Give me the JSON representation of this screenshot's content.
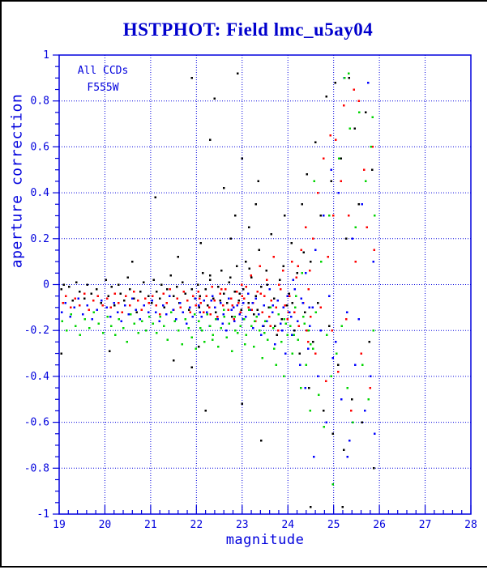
{
  "window": {
    "background": "#ffffff",
    "frame_color": "#000000"
  },
  "title": {
    "text": "HSTPHOT: Field lmc_u5ay04",
    "color": "#0000cd"
  },
  "legend": {
    "line1": "All CCDs",
    "line2": "F555W",
    "color": "#0000dd"
  },
  "axes": {
    "color": "#0000dd",
    "x": {
      "label": "magnitude",
      "min": 19,
      "max": 28,
      "major_ticks": [
        19,
        20,
        21,
        22,
        23,
        24,
        25,
        26,
        27,
        28
      ],
      "tick_labels": [
        "19",
        "20",
        "21",
        "22",
        "23",
        "24",
        "25",
        "26",
        "27",
        "28"
      ],
      "minor_step": 0.2,
      "grid_at": [
        20,
        21,
        22,
        23,
        24,
        25,
        26,
        27
      ]
    },
    "y": {
      "label": "aperture correction",
      "min": -1,
      "max": 1,
      "major_ticks": [
        1,
        0.8,
        0.6,
        0.4,
        0.2,
        0,
        -0.2,
        -0.4,
        -0.6,
        -0.8,
        -1
      ],
      "tick_labels": [
        "1",
        "0.8",
        "0.6",
        "0.4",
        "0.2",
        "0",
        "-0.2",
        "-0.4",
        "-0.6",
        "-0.8",
        "-1"
      ],
      "minor_step": 0.05,
      "grid_at": [
        0.8,
        0.6,
        0.4,
        0.2,
        0,
        -0.2,
        -0.4,
        -0.6,
        -0.8
      ]
    }
  },
  "chart_data": {
    "type": "scatter",
    "title": "HSTPHOT: Field lmc_u5ay04",
    "annotations": [
      "All CCDs",
      "F555W"
    ],
    "xlabel": "magnitude",
    "ylabel": "aperture correction",
    "xlim": [
      19,
      28
    ],
    "ylim": [
      -1,
      1
    ],
    "grid": "blue dotted lines at x = 20..27 and y = -0.8..0.8 step 0.2",
    "legend_position": "top-left inside plot",
    "marker": "small filled square",
    "point_format": "flat array [mag, apcor, mag, apcor, ...]",
    "description": "Aperture correction vs magnitude; tight band near -0.05 to -0.2 for mag 19-24, fanning out to +/-0.9 for mag 24.5-26; no points beyond mag 26.",
    "series": [
      {
        "name": "ccd-black",
        "color": "#000000",
        "points": [
          19.05,
          -0.02,
          19.1,
          0,
          19.15,
          -0.05,
          19.22,
          -0.01,
          19.3,
          -0.07,
          19.38,
          0.01,
          19.45,
          -0.03,
          19.55,
          -0.06,
          19.62,
          0,
          19.7,
          -0.04,
          19.82,
          -0.02,
          19.92,
          -0.08,
          20.02,
          0.02,
          20.08,
          -0.05,
          20.15,
          -0.01,
          20.21,
          -0.09,
          20.3,
          0,
          20.34,
          -0.04,
          20.42,
          -0.07,
          20.5,
          0.03,
          20.55,
          -0.02,
          20.63,
          -0.06,
          20.7,
          -0.12,
          20.78,
          -0.03,
          20.85,
          0.01,
          20.95,
          -0.05,
          21.02,
          -0.08,
          21.07,
          0.02,
          21.13,
          -0.03,
          21.2,
          -0.06,
          21.24,
          0,
          21.3,
          -0.1,
          21.36,
          -0.02,
          21.44,
          0.04,
          21.5,
          -0.05,
          21.57,
          -0.01,
          21.63,
          -0.08,
          21.7,
          0.01,
          21.76,
          -0.04,
          21.84,
          -0.11,
          21.9,
          -0.02,
          21.97,
          -0.06,
          22.03,
          0,
          22.08,
          -0.05,
          22.14,
          0.05,
          22.2,
          -0.02,
          22.25,
          -0.09,
          22.3,
          0.02,
          22.37,
          -0.06,
          22.42,
          -0.12,
          22.48,
          -0.01,
          22.55,
          0.06,
          22.6,
          -0.04,
          22.67,
          -0.08,
          22.72,
          0.01,
          22.78,
          -0.14,
          22.84,
          -0.03,
          22.88,
          0.08,
          22.93,
          -0.07,
          22.98,
          -0.11,
          23.03,
          -0.02,
          23.08,
          0.1,
          23.14,
          -0.08,
          23.2,
          0.03,
          23.26,
          -0.13,
          23.3,
          -0.05,
          23.37,
          0.15,
          23.42,
          -0.01,
          23.47,
          -0.18,
          23.53,
          0.06,
          23.58,
          -0.1,
          23.64,
          0.22,
          23.7,
          -0.06,
          23.76,
          -0.22,
          23.82,
          0.02,
          23.87,
          -0.15,
          23.93,
          0.3,
          23.98,
          -0.09,
          24.03,
          -0.04,
          24.08,
          0.18,
          24.14,
          -0.2,
          24.2,
          0.05,
          24.26,
          -0.3,
          24.31,
          0.35,
          24.37,
          -0.12,
          24.42,
          0.48,
          24.46,
          -0.45,
          24.5,
          0.1,
          24.55,
          -0.25,
          24.6,
          0.62,
          24.66,
          -0.08,
          24.72,
          0.3,
          24.78,
          -0.55,
          24.84,
          0.82,
          24.9,
          -0.18,
          24.95,
          0.45,
          24.98,
          -0.65,
          25.04,
          0.88,
          25.1,
          -0.35,
          25.16,
          0.55,
          25.22,
          -0.72,
          25.28,
          0.2,
          25.34,
          0.9,
          25.4,
          -0.5,
          25.46,
          0.68,
          25.55,
          0.35,
          25.62,
          -0.6,
          25.7,
          0.75,
          25.78,
          -0.25,
          25.84,
          0.5,
          25.88,
          -0.8,
          21.1,
          0.38,
          21.9,
          0.9,
          22.4,
          0.81,
          22.9,
          0.92,
          22.3,
          0.63,
          22.6,
          0.42,
          23.0,
          0.55,
          22.85,
          0.3,
          23.3,
          0.35,
          23.15,
          0.25,
          22.1,
          0.18,
          21.6,
          0.12,
          20.6,
          0.1,
          22.75,
          0.2,
          23.35,
          0.45,
          19.05,
          -0.3,
          20.1,
          -0.29,
          21.5,
          -0.33,
          22.05,
          -0.27,
          22.2,
          -0.55,
          23.0,
          -0.52,
          23.42,
          -0.68,
          21.9,
          -0.36,
          24.5,
          -0.97,
          25.2,
          -0.97,
          22.06,
          -0.1,
          22.3,
          0.04,
          22.52,
          -0.07,
          22.74,
          0.03,
          22.95,
          -0.04,
          23.16,
          0.07,
          23.34,
          -0.11,
          23.55,
          0,
          23.72,
          -0.18,
          23.9,
          0.08,
          24.1,
          -0.08,
          24.35,
          0.14
        ]
      },
      {
        "name": "ccd-red",
        "color": "#ff0000",
        "points": [
          19.08,
          -0.08,
          19.15,
          -0.05,
          19.25,
          -0.1,
          19.35,
          -0.06,
          19.45,
          -0.09,
          19.55,
          -0.04,
          19.65,
          -0.11,
          19.75,
          -0.07,
          19.85,
          -0.05,
          19.95,
          -0.09,
          20.05,
          -0.06,
          20.13,
          -0.1,
          20.22,
          -0.04,
          20.3,
          -0.08,
          20.38,
          -0.12,
          20.46,
          -0.05,
          20.55,
          -0.09,
          20.63,
          -0.03,
          20.72,
          -0.07,
          20.8,
          -0.11,
          20.88,
          -0.06,
          20.96,
          -0.08,
          21.04,
          -0.05,
          21.12,
          -0.09,
          21.2,
          -0.13,
          21.28,
          -0.04,
          21.35,
          -0.08,
          21.42,
          -0.02,
          21.5,
          -0.11,
          21.58,
          -0.06,
          21.65,
          -0.1,
          21.72,
          -0.03,
          21.8,
          -0.07,
          21.87,
          -0.12,
          21.93,
          -0.05,
          21.99,
          -0.09,
          22.04,
          -0.03,
          22.1,
          -0.08,
          22.16,
          -0.12,
          22.22,
          -0.05,
          22.28,
          -0.1,
          22.34,
          -0.01,
          22.4,
          -0.07,
          22.46,
          -0.14,
          22.52,
          -0.04,
          22.58,
          -0.09,
          22.64,
          -0.02,
          22.7,
          -0.11,
          22.76,
          -0.06,
          22.82,
          -0.15,
          22.88,
          -0.03,
          22.92,
          -0.08,
          22.96,
          -0.12,
          22.99,
          0,
          23.04,
          -0.06,
          23.09,
          -0.01,
          23.14,
          -0.1,
          23.19,
          0.04,
          23.24,
          -0.08,
          23.29,
          -0.16,
          23.34,
          -0.03,
          23.39,
          0.08,
          23.44,
          -0.12,
          23.49,
          -0.05,
          23.54,
          0.02,
          23.59,
          -0.14,
          23.64,
          -0.07,
          23.69,
          0.12,
          23.74,
          -0.1,
          23.79,
          -0.2,
          23.84,
          -0.02,
          23.89,
          0.06,
          23.94,
          -0.09,
          23.99,
          -0.15,
          24.04,
          -0.05,
          24.09,
          0.1,
          24.14,
          -0.12,
          24.19,
          0.03,
          24.24,
          -0.18,
          24.29,
          0.15,
          24.34,
          -0.08,
          24.39,
          0.25,
          24.44,
          -0.25,
          24.48,
          0.06,
          24.5,
          -0.14,
          24.45,
          -0.02,
          24.55,
          0.2,
          24.6,
          -0.3,
          24.66,
          0.4,
          24.72,
          -0.1,
          24.78,
          0.55,
          24.83,
          -0.42,
          24.88,
          0.12,
          24.93,
          0.65,
          24.97,
          -0.2,
          24.99,
          0.3,
          25.05,
          0.63,
          25.1,
          -0.38,
          25.16,
          0.45,
          25.22,
          0.78,
          25.28,
          -0.15,
          25.33,
          0.3,
          25.38,
          -0.55,
          25.44,
          0.85,
          25.48,
          0.1,
          25.55,
          0.8,
          25.6,
          -0.3,
          25.67,
          0.5,
          25.73,
          0.25,
          25.8,
          -0.45,
          25.85,
          0.6,
          25.89,
          0.15,
          22.07,
          -0.06,
          22.31,
          -0.13,
          22.55,
          -0.02,
          22.79,
          -0.09,
          23.0,
          -0.05,
          23.21,
          -0.11,
          23.41,
          -0.04,
          23.62,
          -0.18,
          23.81,
          0,
          24.01,
          -0.12,
          24.22,
          0.08,
          24.41,
          -0.2
        ]
      },
      {
        "name": "ccd-blue",
        "color": "#0000ff",
        "points": [
          19.06,
          -0.12,
          19.14,
          -0.08,
          19.24,
          -0.14,
          19.33,
          -0.1,
          19.42,
          -0.06,
          19.52,
          -0.13,
          19.62,
          -0.09,
          19.72,
          -0.15,
          19.83,
          -0.11,
          19.93,
          -0.07,
          20.04,
          -0.1,
          20.12,
          -0.14,
          20.2,
          -0.08,
          20.28,
          -0.12,
          20.36,
          -0.16,
          20.44,
          -0.09,
          20.52,
          -0.13,
          20.6,
          -0.06,
          20.68,
          -0.11,
          20.77,
          -0.15,
          20.86,
          -0.09,
          20.95,
          -0.12,
          21.03,
          -0.07,
          21.11,
          -0.12,
          21.19,
          -0.16,
          21.27,
          -0.09,
          21.34,
          -0.13,
          21.41,
          -0.05,
          21.49,
          -0.11,
          21.56,
          -0.15,
          21.64,
          -0.08,
          21.71,
          -0.12,
          21.79,
          -0.17,
          21.86,
          -0.1,
          21.92,
          -0.14,
          21.98,
          -0.06,
          22.05,
          -0.09,
          22.11,
          -0.14,
          22.17,
          -0.07,
          22.23,
          -0.12,
          22.29,
          -0.18,
          22.35,
          -0.05,
          22.41,
          -0.1,
          22.47,
          -0.15,
          22.53,
          -0.08,
          22.59,
          -0.13,
          22.65,
          -0.2,
          22.71,
          -0.06,
          22.77,
          -0.11,
          22.83,
          -0.16,
          22.89,
          -0.09,
          22.95,
          -0.13,
          23.03,
          -0.08,
          23.08,
          -0.14,
          23.13,
          -0.04,
          23.18,
          -0.11,
          23.24,
          -0.19,
          23.3,
          -0.06,
          23.36,
          -0.13,
          23.42,
          -0.22,
          23.48,
          -0.09,
          23.54,
          -0.16,
          23.6,
          -0.02,
          23.66,
          -0.12,
          23.72,
          -0.26,
          23.78,
          -0.07,
          23.84,
          -0.17,
          23.9,
          -0.1,
          23.95,
          -0.3,
          23.99,
          -0.05,
          24.04,
          -0.12,
          24.09,
          -0.22,
          24.15,
          -0.02,
          24.21,
          -0.16,
          24.27,
          -0.35,
          24.33,
          -0.08,
          24.39,
          0.05,
          24.44,
          -0.28,
          24.48,
          -0.18,
          24.38,
          -0.45,
          24.12,
          0.02,
          24.54,
          -0.1,
          24.6,
          0.15,
          24.66,
          -0.4,
          24.72,
          -0.2,
          24.78,
          0.3,
          24.84,
          -0.6,
          24.9,
          -0.05,
          24.95,
          0.5,
          24.98,
          -0.32,
          24.57,
          -0.75,
          25.05,
          -0.25,
          25.11,
          0.4,
          25.17,
          -0.5,
          25.23,
          0.9,
          25.29,
          -0.12,
          25.35,
          -0.68,
          25.41,
          0.2,
          25.47,
          -0.35,
          25.3,
          -0.75,
          25.55,
          -0.15,
          25.62,
          0.35,
          25.68,
          -0.55,
          25.75,
          0.88,
          25.81,
          -0.4,
          25.87,
          0.1,
          25.9,
          -0.65,
          22.08,
          -0.12,
          22.33,
          -0.07,
          22.57,
          -0.17,
          22.81,
          -0.1,
          23.02,
          -0.15,
          23.23,
          -0.08,
          23.45,
          -0.18,
          23.67,
          -0.09,
          23.88,
          -0.2,
          24.07,
          -0.14,
          24.29,
          -0.06,
          24.47,
          -0.1
        ]
      },
      {
        "name": "ccd-green",
        "color": "#00d400",
        "points": [
          19.07,
          -0.16,
          19.16,
          -0.2,
          19.26,
          -0.13,
          19.36,
          -0.18,
          19.46,
          -0.22,
          19.56,
          -0.15,
          19.66,
          -0.19,
          19.76,
          -0.12,
          19.86,
          -0.17,
          19.96,
          -0.21,
          20.06,
          -0.14,
          20.14,
          -0.18,
          20.23,
          -0.22,
          20.31,
          -0.15,
          20.4,
          -0.19,
          20.48,
          -0.25,
          20.56,
          -0.13,
          20.64,
          -0.17,
          20.73,
          -0.21,
          20.81,
          -0.16,
          20.9,
          -0.2,
          20.97,
          -0.14,
          21.05,
          -0.17,
          21.13,
          -0.21,
          21.21,
          -0.14,
          21.29,
          -0.18,
          21.37,
          -0.24,
          21.45,
          -0.12,
          21.53,
          -0.16,
          21.61,
          -0.2,
          21.69,
          -0.26,
          21.76,
          -0.15,
          21.83,
          -0.19,
          21.9,
          -0.23,
          21.96,
          -0.13,
          21.99,
          -0.28,
          22.05,
          -0.16,
          22.12,
          -0.2,
          22.18,
          -0.25,
          22.24,
          -0.13,
          22.3,
          -0.18,
          22.36,
          -0.22,
          22.42,
          -0.15,
          22.48,
          -0.27,
          22.54,
          -0.19,
          22.6,
          -0.11,
          22.66,
          -0.23,
          22.72,
          -0.17,
          22.78,
          -0.29,
          22.84,
          -0.14,
          22.9,
          -0.21,
          22.96,
          -0.18,
          23.04,
          -0.15,
          23.09,
          -0.22,
          23.15,
          -0.11,
          23.2,
          -0.18,
          23.26,
          -0.27,
          23.32,
          -0.14,
          23.38,
          -0.2,
          23.44,
          -0.32,
          23.5,
          -0.16,
          23.56,
          -0.24,
          23.62,
          -0.1,
          23.68,
          -0.19,
          23.74,
          -0.35,
          23.8,
          -0.13,
          23.86,
          -0.25,
          23.91,
          -0.4,
          23.96,
          -0.17,
          23.99,
          -0.22,
          24.05,
          -0.18,
          24.1,
          -0.3,
          24.16,
          -0.1,
          24.22,
          -0.24,
          24.28,
          -0.45,
          24.34,
          -0.14,
          24.4,
          -0.35,
          24.45,
          -0.2,
          24.49,
          -0.55,
          24.31,
          0.05,
          24.18,
          -0.05,
          24.55,
          -0.28,
          24.61,
          -0.12,
          24.67,
          -0.48,
          24.73,
          0.1,
          24.79,
          -0.62,
          24.85,
          -0.22,
          24.9,
          0.3,
          24.95,
          -0.4,
          24.98,
          -0.87,
          24.58,
          0.45,
          25.06,
          -0.3,
          25.12,
          0.55,
          25.18,
          -0.18,
          25.24,
          0.9,
          25.3,
          -0.45,
          25.36,
          0.68,
          25.42,
          -0.6,
          25.48,
          0.25,
          25.33,
          0.92,
          25.56,
          0.75,
          25.63,
          -0.35,
          25.7,
          0.45,
          25.76,
          -0.5,
          25.82,
          0.6,
          25.87,
          -0.2,
          25.9,
          0.3,
          25.85,
          0.73,
          22.09,
          -0.19,
          22.35,
          -0.24,
          22.61,
          -0.14,
          22.85,
          -0.2,
          23.06,
          -0.26,
          23.27,
          -0.16,
          23.49,
          -0.21,
          23.7,
          -0.28,
          23.92,
          -0.15,
          24.13,
          -0.22,
          24.36,
          -0.17,
          24.5,
          -0.26
        ]
      }
    ]
  }
}
